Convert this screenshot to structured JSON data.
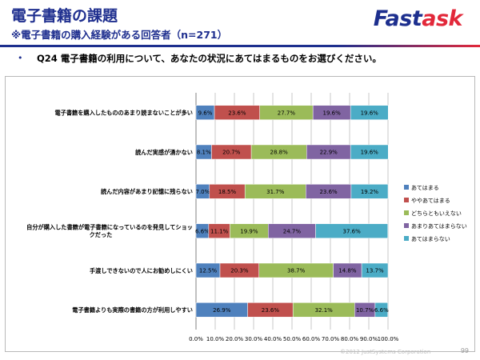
{
  "header": {
    "title": "電子書籍の課題",
    "subtitle": "※電子書籍の購入経験がある回答者（n=271）",
    "logo_part1": "Fast",
    "logo_part2": "ask"
  },
  "question": {
    "bullet": "•",
    "text": "Q24 電子書籍の利用について、あなたの状況にあてはまるものをお選びください。"
  },
  "footer": {
    "copyright": "©2012 JustSystems Corporation",
    "page": "99"
  },
  "colors": {
    "series": [
      "#4f81bd",
      "#c0504d",
      "#9bbb59",
      "#8064a2",
      "#4bacc6"
    ],
    "grid": "#c8c8c8",
    "axis_text": "#000000"
  },
  "chart_data": {
    "type": "bar",
    "orientation": "horizontal",
    "stacked": true,
    "percent_stacked": true,
    "categories": [
      "電子書籍を購入したもののあまり読まないことが多い",
      "読んだ実感が湧かない",
      "読んだ内容があまり記憶に残らない",
      "自分が購入した書籍が電子書籍になっているのを発見してショックだった",
      "手渡しできないので人にお勧めしにくい",
      "電子書籍よりも実際の書籍の方が利用しやすい"
    ],
    "series": [
      {
        "name": "あてはまる",
        "values": [
          9.6,
          8.1,
          7.0,
          6.6,
          12.5,
          26.9
        ]
      },
      {
        "name": "ややあてはまる",
        "values": [
          23.6,
          20.7,
          18.5,
          11.1,
          20.3,
          23.6
        ]
      },
      {
        "name": "どちらともいえない",
        "values": [
          27.7,
          28.8,
          31.7,
          19.9,
          38.7,
          32.1
        ]
      },
      {
        "name": "あまりあてはまらない",
        "values": [
          19.6,
          22.9,
          23.6,
          24.7,
          14.8,
          10.7
        ]
      },
      {
        "name": "あてはまらない",
        "values": [
          19.6,
          19.6,
          19.2,
          37.6,
          13.7,
          6.6
        ]
      }
    ],
    "data_labels": [
      [
        "9.6%",
        "8.1%",
        "7.0%",
        "6.6%",
        "12.5%",
        "26.9%"
      ],
      [
        "23.6%",
        "20.7%",
        "18.5%",
        "11.1%",
        "20.3%",
        "23.6%"
      ],
      [
        "27.7%",
        "28.8%",
        "31.7%",
        "19.9%",
        "38.7%",
        "32.1%"
      ],
      [
        "19.6%",
        "22.9%",
        "23.6%",
        "24.7%",
        "14.8%",
        "10.7%"
      ],
      [
        "19.6%",
        "19.6%",
        "19.2%",
        "37.6%",
        "13.7%",
        "6.6%"
      ]
    ],
    "category_labels": [
      [
        "電子書籍を購入したもののあまり読まないことが多い"
      ],
      [
        "読んだ実感が湧かない"
      ],
      [
        "読んだ内容があまり記憶に残らない"
      ],
      [
        "自分が購入した書籍が電子書籍になっているのを発見してショッ",
        "クだった"
      ],
      [
        "手渡しできないので人にお勧めしにくい"
      ],
      [
        "電子書籍よりも実際の書籍の方が利用しやすい"
      ]
    ],
    "x_ticks": [
      "0.0%",
      "10.0%",
      "20.0%",
      "30.0%",
      "40.0%",
      "50.0%",
      "60.0%",
      "70.0%",
      "80.0%",
      "90.0%",
      "100.0%"
    ],
    "xlim": [
      0,
      100
    ],
    "grid": true,
    "legend_position": "right"
  }
}
